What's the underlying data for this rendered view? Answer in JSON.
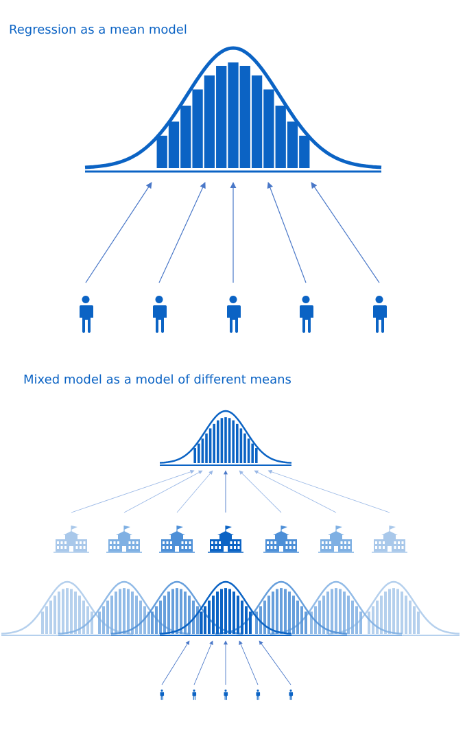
{
  "section_1": {
    "title": "Regression as a mean model",
    "person_count": 5
  },
  "section_2": {
    "title": "Mixed model as a model of different means",
    "school_count": 7,
    "group_count": 7,
    "person_count": 5
  },
  "colors": {
    "primary": "#0b63c4",
    "arrow": "#4a78c8",
    "title": "#0b63c4",
    "fade_1": "#a9c8ea",
    "fade_2": "#7fb0e3",
    "fade_3": "#4d8fd7"
  },
  "icons": {
    "person": "person-icon",
    "school": "school-building-icon",
    "flag": "flag-icon"
  }
}
